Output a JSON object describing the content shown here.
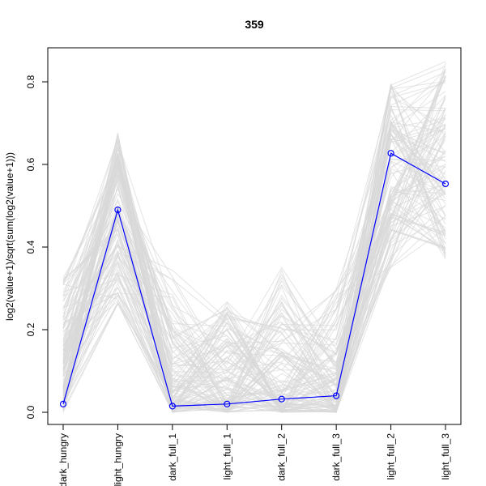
{
  "chart_data": {
    "type": "line",
    "title": "359",
    "xlabel": "",
    "ylabel": "log2(value+1)/sqrt(sum(log2(value+1)))",
    "categories": [
      "dark_hungry",
      "light_hungry",
      "dark_full_1",
      "light_full_1",
      "dark_full_2",
      "dark_full_3",
      "light_full_2",
      "light_full_3"
    ],
    "ylim": [
      0,
      0.8
    ],
    "yticks": [
      0.0,
      0.2,
      0.4,
      0.6,
      0.8
    ],
    "ytick_labels": [
      "0.0",
      "0.2",
      "0.4",
      "0.6",
      "0.8"
    ],
    "grid": false,
    "background_series_color": "#d9d9d9",
    "highlight_color": "#0000ff",
    "highlight_series": {
      "values": [
        0.02,
        0.49,
        0.015,
        0.02,
        0.032,
        0.04,
        0.627,
        0.553
      ]
    },
    "background_series": {
      "count": 120,
      "ranges": [
        [
          0.0,
          0.33
        ],
        [
          0.26,
          0.68
        ],
        [
          0.0,
          0.36
        ],
        [
          0.0,
          0.27
        ],
        [
          0.0,
          0.35
        ],
        [
          0.0,
          0.3
        ],
        [
          0.35,
          0.8
        ],
        [
          0.37,
          0.85
        ]
      ]
    }
  }
}
